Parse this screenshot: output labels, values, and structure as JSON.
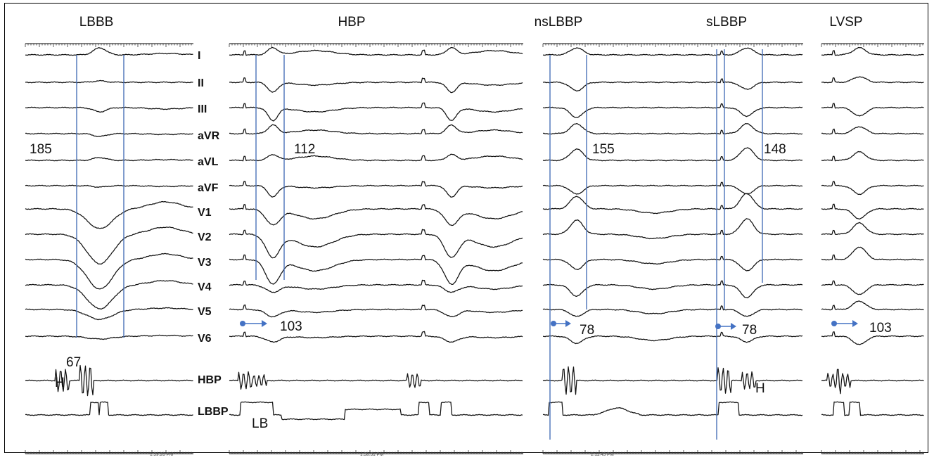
{
  "segments": {
    "lbbb": {
      "title": "LBBB",
      "qrs": "185",
      "hv": "67",
      "h_label": "H",
      "timestamp": "1:59:26 PM"
    },
    "hbp": {
      "title": "HBP",
      "qrs": "112",
      "stim": "103",
      "lb_label": "LB",
      "timestamp": "1:58:51 PM"
    },
    "nslbbp": {
      "title": "nsLBBP",
      "qrs": "155",
      "stim": "78",
      "timestamp": "2:11:45 PM"
    },
    "slbbp": {
      "title": "sLBBP",
      "qrs": "148",
      "stim": "78",
      "h_label": "H"
    },
    "lvsp": {
      "title": "LVSP",
      "stim": "103"
    }
  },
  "leads": [
    "I",
    "II",
    "III",
    "aVR",
    "aVL",
    "aVF",
    "V1",
    "V2",
    "V3",
    "V4",
    "V5",
    "V6"
  ],
  "intracardiac_leads": [
    "HBP",
    "LBBP"
  ],
  "colors": {
    "caliper": "#4a72b8",
    "arrow": "#4472c4",
    "trace": "#111111"
  }
}
